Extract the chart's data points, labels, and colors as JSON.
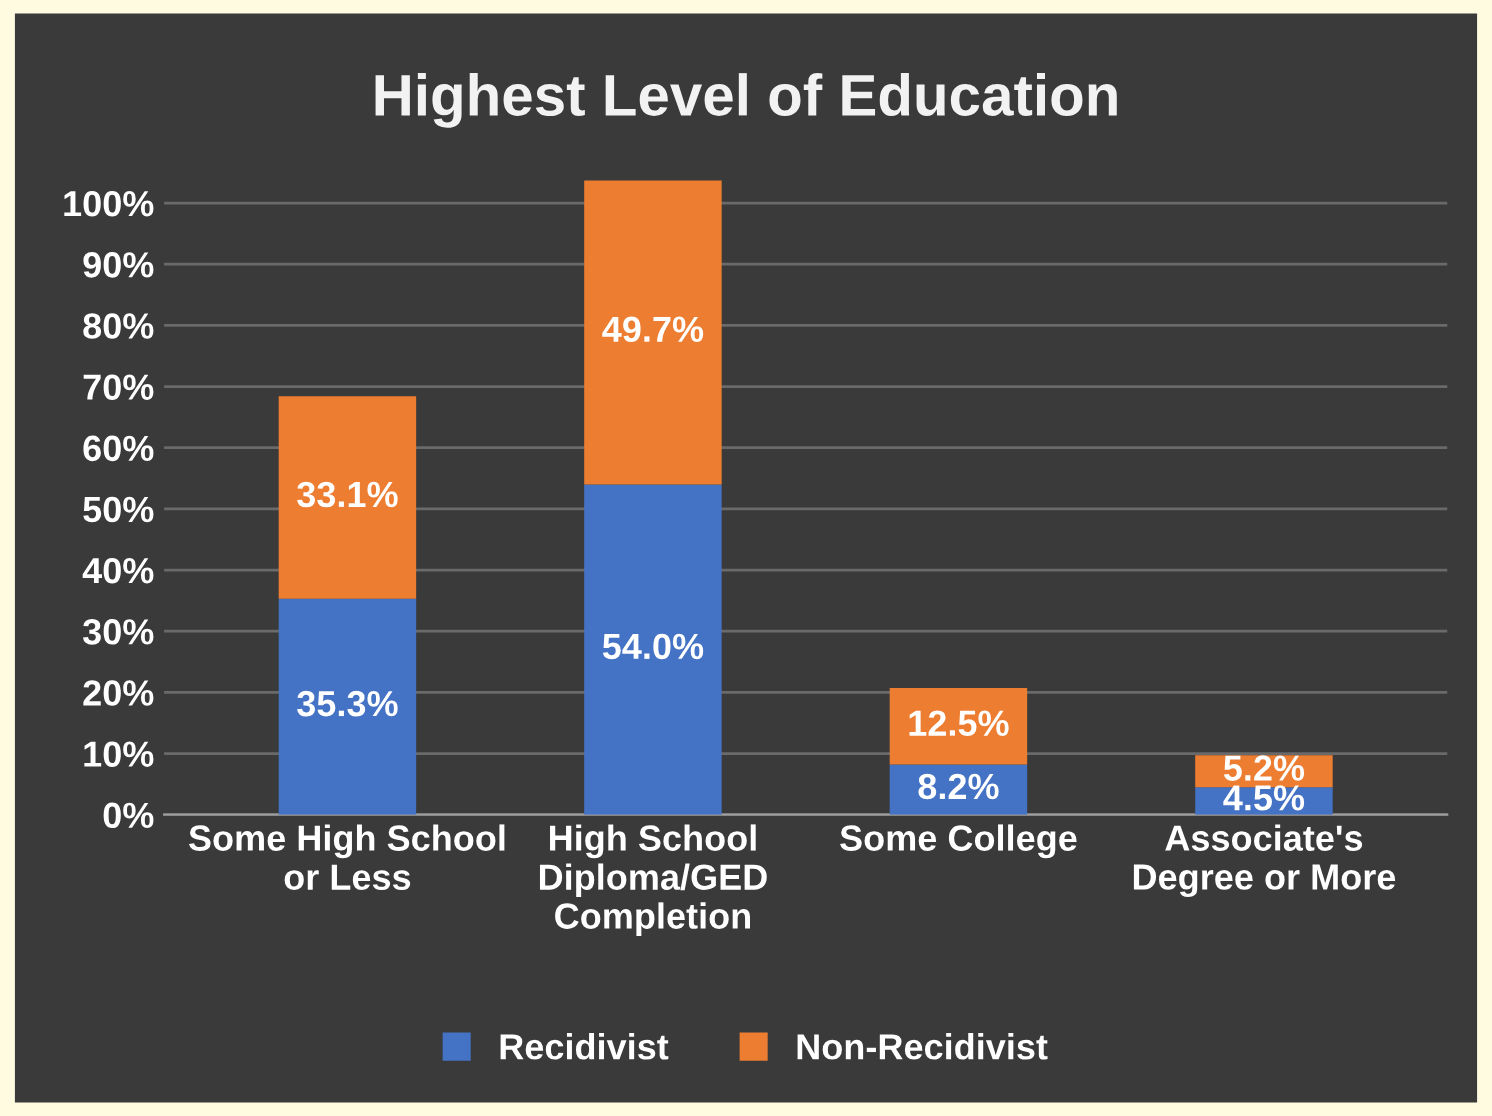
{
  "chart_data": {
    "type": "bar",
    "title": "Highest Level of Education",
    "categories": [
      "Some High School\nor Less",
      "High School\nDiploma/GED\nCompletion",
      "Some College",
      "Associate's\nDegree or More"
    ],
    "stacked": true,
    "series": [
      {
        "name": "Recidivist",
        "color": "#4472c4",
        "values": [
          35.3,
          54.0,
          8.2,
          4.5
        ],
        "value_labels": [
          "35.3%",
          "54.0%",
          "8.2%",
          "4.5%"
        ]
      },
      {
        "name": "Non-Recidivist",
        "color": "#ed7d31",
        "values": [
          33.1,
          49.7,
          12.5,
          5.2
        ],
        "value_labels": [
          "33.1%",
          "49.7%",
          "12.5%",
          "5.2%"
        ]
      }
    ],
    "ylim": [
      0,
      104
    ],
    "yticks": [
      {
        "value": 0,
        "label": "0%"
      },
      {
        "value": 10,
        "label": "10%"
      },
      {
        "value": 20,
        "label": "20%"
      },
      {
        "value": 30,
        "label": "30%"
      },
      {
        "value": 40,
        "label": "40%"
      },
      {
        "value": 50,
        "label": "50%"
      },
      {
        "value": 60,
        "label": "60%"
      },
      {
        "value": 70,
        "label": "70%"
      },
      {
        "value": 80,
        "label": "80%"
      },
      {
        "value": 90,
        "label": "90%"
      },
      {
        "value": 100,
        "label": "100%"
      }
    ],
    "grid": "y",
    "legend": "bottom"
  }
}
